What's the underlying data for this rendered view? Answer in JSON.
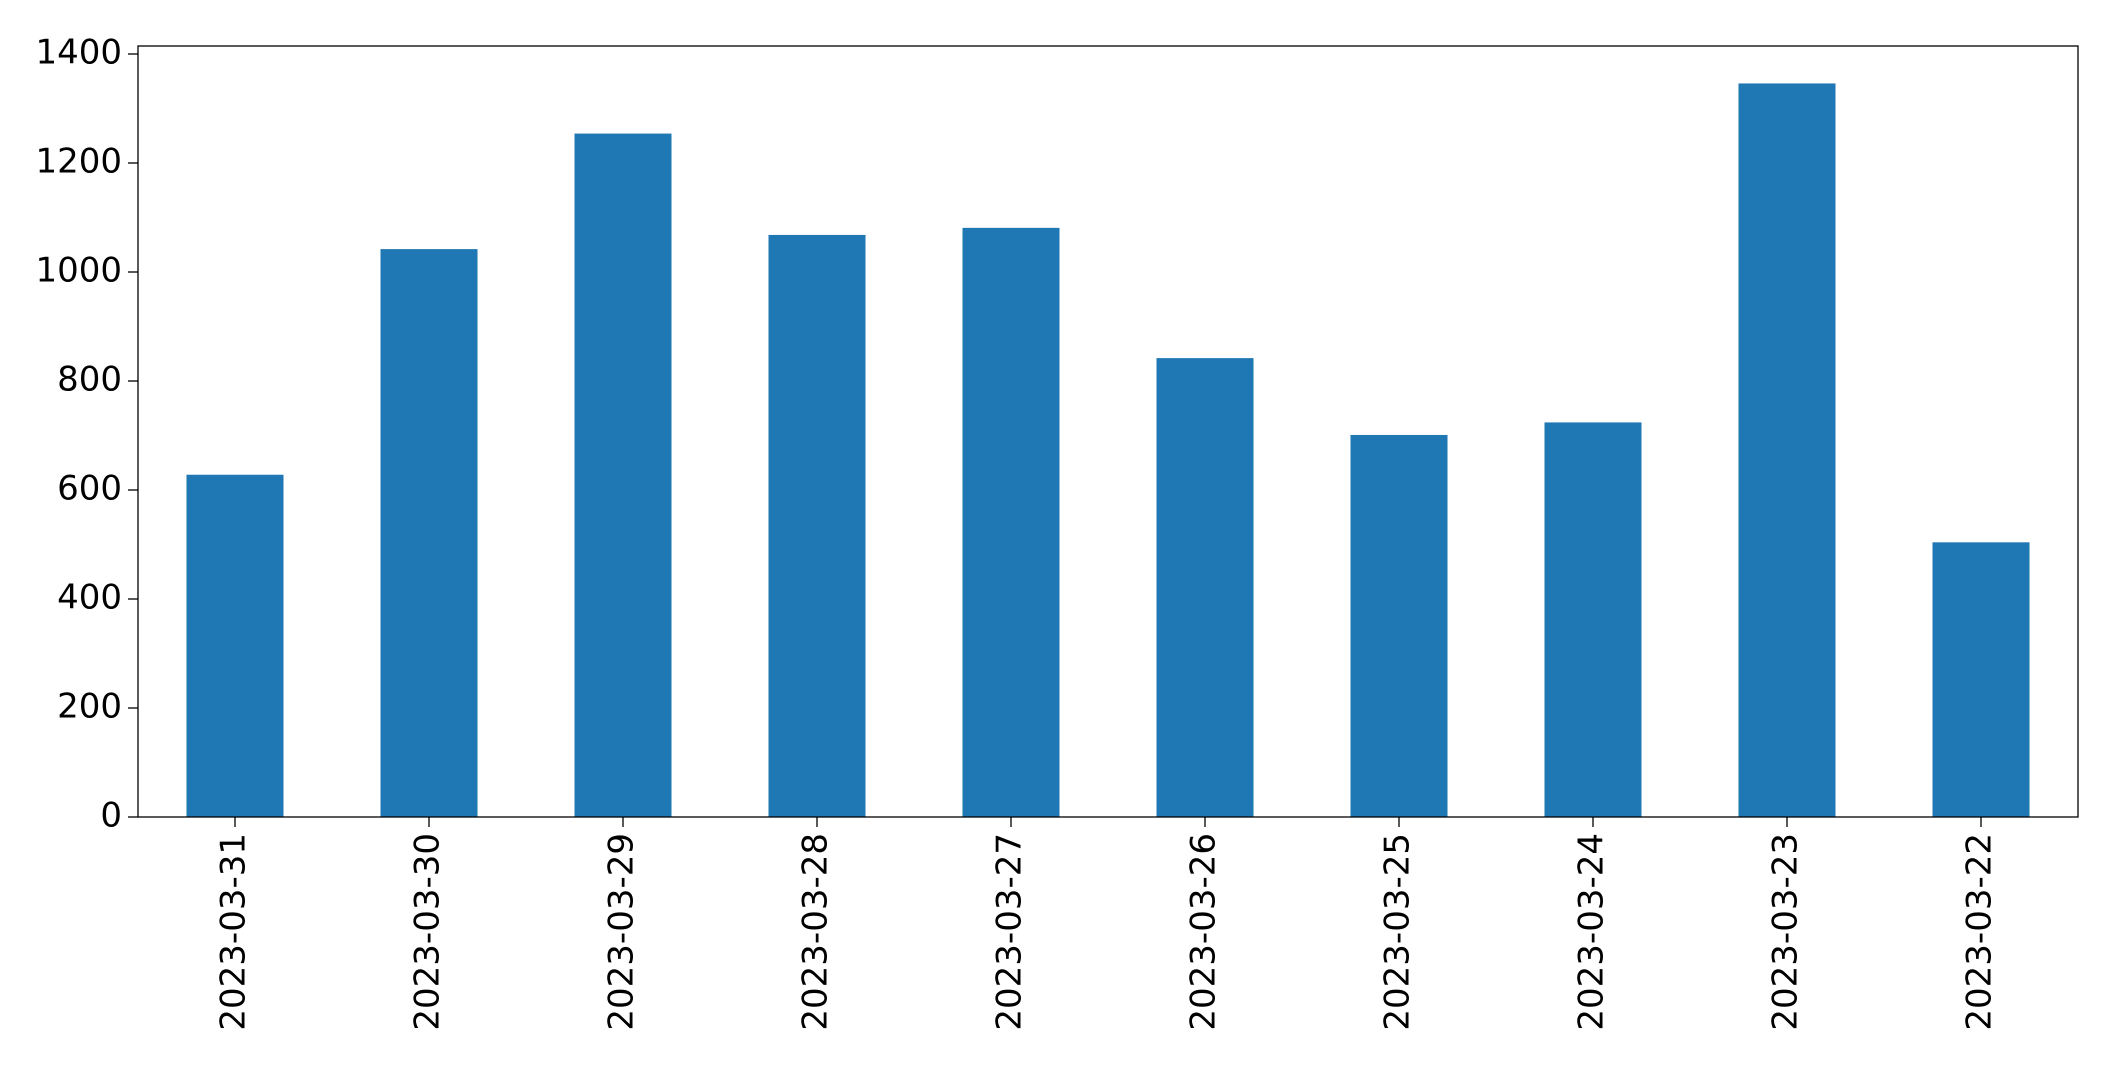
{
  "chart_data": {
    "type": "bar",
    "title": "",
    "xlabel": "",
    "ylabel": "",
    "categories": [
      "2023-03-31",
      "2023-03-30",
      "2023-03-29",
      "2023-03-28",
      "2023-03-27",
      "2023-03-26",
      "2023-03-25",
      "2023-03-24",
      "2023-03-23",
      "2023-03-22"
    ],
    "values": [
      628,
      1042,
      1254,
      1068,
      1081,
      842,
      701,
      724,
      1346,
      504
    ],
    "ylim": [
      0,
      1400
    ],
    "yticks": [
      0,
      200,
      400,
      600,
      800,
      1000,
      1200,
      1400
    ],
    "ytick_labels": [
      "0",
      "200",
      "400",
      "600",
      "800",
      "1000",
      "1200",
      "1400"
    ],
    "grid": false,
    "legend": "none",
    "colors": {
      "bar": "#1f77b4",
      "axis": "#000000"
    }
  }
}
